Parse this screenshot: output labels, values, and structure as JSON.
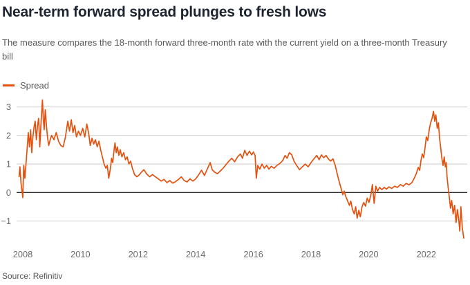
{
  "header": {
    "title": "Near-term forward spread plunges to fresh lows",
    "subtitle": "The measure compares the 18-month forward three-month rate with the current yield on a three-month Treasury bill"
  },
  "legend": {
    "label": "Spread",
    "color": "#e4510e"
  },
  "source": "Source: Refinitiv",
  "colors": {
    "line": "#e4510e",
    "grid": "#cbcbcb",
    "zero_line": "#2b2b2b",
    "tick_label": "#6b6b6b",
    "title": "#1e2430",
    "subtitle": "#575757"
  },
  "chart_data": {
    "type": "line",
    "title": "Near-term forward spread plunges to fresh lows",
    "subtitle": "The measure compares the 18-month forward three-month rate with the current yield on a three-month Treasury bill",
    "xlabel": "",
    "ylabel": "",
    "x_ticks": [
      2008,
      2010,
      2012,
      2014,
      2016,
      2018,
      2020,
      2022
    ],
    "y_ticks": [
      -1,
      0,
      1,
      2,
      3
    ],
    "xlim": [
      2007.85,
      2023.5
    ],
    "ylim": [
      -1.8,
      3.35
    ],
    "grid": "horizontal",
    "zero_line": true,
    "legend_position": "top-left",
    "source": "Source: Refinitiv",
    "series": [
      {
        "name": "Spread",
        "color": "#e4510e",
        "points": [
          [
            2007.87,
            0.55
          ],
          [
            2007.9,
            0.9
          ],
          [
            2007.94,
            0.3
          ],
          [
            2008,
            -0.18
          ],
          [
            2008.03,
            0.95
          ],
          [
            2008.07,
            0.5
          ],
          [
            2008.11,
            1.0
          ],
          [
            2008.15,
            1.55
          ],
          [
            2008.19,
            2.1
          ],
          [
            2008.23,
            1.6
          ],
          [
            2008.27,
            2.2
          ],
          [
            2008.31,
            1.4
          ],
          [
            2008.35,
            1.95
          ],
          [
            2008.39,
            2.3
          ],
          [
            2008.43,
            2.5
          ],
          [
            2008.47,
            1.85
          ],
          [
            2008.51,
            2.35
          ],
          [
            2008.55,
            2.6
          ],
          [
            2008.59,
            1.6
          ],
          [
            2008.63,
            2.4
          ],
          [
            2008.68,
            3.25
          ],
          [
            2008.71,
            2.6
          ],
          [
            2008.74,
            2.2
          ],
          [
            2008.78,
            2.9
          ],
          [
            2008.82,
            2.35
          ],
          [
            2008.86,
            1.9
          ],
          [
            2008.9,
            1.65
          ],
          [
            2008.95,
            1.85
          ],
          [
            2009,
            2.0
          ],
          [
            2009.08,
            1.85
          ],
          [
            2009.16,
            2.1
          ],
          [
            2009.24,
            1.8
          ],
          [
            2009.32,
            1.65
          ],
          [
            2009.4,
            1.6
          ],
          [
            2009.48,
            1.95
          ],
          [
            2009.56,
            2.5
          ],
          [
            2009.62,
            2.15
          ],
          [
            2009.68,
            2.55
          ],
          [
            2009.74,
            2.1
          ],
          [
            2009.8,
            2.35
          ],
          [
            2009.86,
            1.95
          ],
          [
            2009.93,
            2.15
          ],
          [
            2010,
            2.0
          ],
          [
            2010.08,
            2.25
          ],
          [
            2010.15,
            1.95
          ],
          [
            2010.22,
            2.4
          ],
          [
            2010.28,
            2.1
          ],
          [
            2010.34,
            1.65
          ],
          [
            2010.4,
            1.9
          ],
          [
            2010.46,
            1.7
          ],
          [
            2010.52,
            1.85
          ],
          [
            2010.58,
            1.6
          ],
          [
            2010.64,
            1.8
          ],
          [
            2010.7,
            1.5
          ],
          [
            2010.76,
            1.25
          ],
          [
            2010.82,
            1.0
          ],
          [
            2010.88,
            0.85
          ],
          [
            2010.93,
            0.95
          ],
          [
            2010.98,
            0.5
          ],
          [
            2011.04,
            0.85
          ],
          [
            2011.08,
            1.2
          ],
          [
            2011.12,
            1.05
          ],
          [
            2011.16,
            1.45
          ],
          [
            2011.2,
            1.74
          ],
          [
            2011.24,
            1.4
          ],
          [
            2011.28,
            1.6
          ],
          [
            2011.33,
            1.3
          ],
          [
            2011.38,
            1.5
          ],
          [
            2011.44,
            1.25
          ],
          [
            2011.5,
            1.4
          ],
          [
            2011.56,
            1.15
          ],
          [
            2011.62,
            1.25
          ],
          [
            2011.68,
            1.0
          ],
          [
            2011.74,
            1.1
          ],
          [
            2011.8,
            0.85
          ],
          [
            2011.88,
            0.62
          ],
          [
            2011.96,
            0.55
          ],
          [
            2012.04,
            0.62
          ],
          [
            2012.12,
            0.72
          ],
          [
            2012.2,
            0.8
          ],
          [
            2012.3,
            0.65
          ],
          [
            2012.4,
            0.55
          ],
          [
            2012.5,
            0.63
          ],
          [
            2012.6,
            0.55
          ],
          [
            2012.7,
            0.48
          ],
          [
            2012.8,
            0.4
          ],
          [
            2012.9,
            0.46
          ],
          [
            2013,
            0.35
          ],
          [
            2013.1,
            0.42
          ],
          [
            2013.2,
            0.33
          ],
          [
            2013.3,
            0.38
          ],
          [
            2013.4,
            0.46
          ],
          [
            2013.5,
            0.55
          ],
          [
            2013.6,
            0.42
          ],
          [
            2013.7,
            0.37
          ],
          [
            2013.8,
            0.48
          ],
          [
            2013.9,
            0.4
          ],
          [
            2014,
            0.48
          ],
          [
            2014.1,
            0.62
          ],
          [
            2014.2,
            0.78
          ],
          [
            2014.3,
            0.6
          ],
          [
            2014.4,
            0.82
          ],
          [
            2014.5,
            1.05
          ],
          [
            2014.57,
            0.8
          ],
          [
            2014.65,
            0.72
          ],
          [
            2014.75,
            0.66
          ],
          [
            2014.85,
            0.75
          ],
          [
            2014.95,
            0.85
          ],
          [
            2015.05,
            0.98
          ],
          [
            2015.15,
            1.1
          ],
          [
            2015.25,
            1.2
          ],
          [
            2015.35,
            1.08
          ],
          [
            2015.45,
            1.25
          ],
          [
            2015.55,
            1.35
          ],
          [
            2015.62,
            1.2
          ],
          [
            2015.7,
            1.48
          ],
          [
            2015.78,
            1.3
          ],
          [
            2015.86,
            1.45
          ],
          [
            2015.94,
            1.32
          ],
          [
            2016,
            1.42
          ],
          [
            2016.06,
            1.3
          ],
          [
            2016.1,
            0.5
          ],
          [
            2016.15,
            0.95
          ],
          [
            2016.22,
            0.82
          ],
          [
            2016.3,
            1.0
          ],
          [
            2016.38,
            0.85
          ],
          [
            2016.46,
            0.95
          ],
          [
            2016.54,
            0.82
          ],
          [
            2016.62,
            0.92
          ],
          [
            2016.72,
            0.85
          ],
          [
            2016.82,
            0.95
          ],
          [
            2016.92,
            1.02
          ],
          [
            2017.02,
            1.12
          ],
          [
            2017.1,
            1.3
          ],
          [
            2017.17,
            1.2
          ],
          [
            2017.25,
            1.4
          ],
          [
            2017.33,
            1.32
          ],
          [
            2017.42,
            1.08
          ],
          [
            2017.5,
            0.95
          ],
          [
            2017.6,
            0.8
          ],
          [
            2017.7,
            0.9
          ],
          [
            2017.8,
            1.0
          ],
          [
            2017.9,
            0.9
          ],
          [
            2018,
            1.05
          ],
          [
            2018.1,
            1.18
          ],
          [
            2018.2,
            1.3
          ],
          [
            2018.28,
            1.15
          ],
          [
            2018.36,
            1.32
          ],
          [
            2018.44,
            1.22
          ],
          [
            2018.52,
            1.3
          ],
          [
            2018.6,
            1.18
          ],
          [
            2018.68,
            1.1
          ],
          [
            2018.76,
            1.18
          ],
          [
            2018.84,
            0.95
          ],
          [
            2018.92,
            0.6
          ],
          [
            2019,
            0.3
          ],
          [
            2019.05,
            0.12
          ],
          [
            2019.1,
            -0.08
          ],
          [
            2019.15,
            0.05
          ],
          [
            2019.2,
            -0.12
          ],
          [
            2019.27,
            -0.3
          ],
          [
            2019.33,
            -0.45
          ],
          [
            2019.38,
            -0.3
          ],
          [
            2019.44,
            -0.6
          ],
          [
            2019.5,
            -0.75
          ],
          [
            2019.55,
            -0.5
          ],
          [
            2019.6,
            -0.9
          ],
          [
            2019.66,
            -0.62
          ],
          [
            2019.71,
            -0.85
          ],
          [
            2019.77,
            -0.5
          ],
          [
            2019.83,
            -0.35
          ],
          [
            2019.89,
            -0.48
          ],
          [
            2019.95,
            -0.2
          ],
          [
            2020.01,
            -0.35
          ],
          [
            2020.07,
            -0.12
          ],
          [
            2020.13,
            0.28
          ],
          [
            2020.19,
            -0.38
          ],
          [
            2020.25,
            0.22
          ],
          [
            2020.31,
            0.05
          ],
          [
            2020.38,
            0.18
          ],
          [
            2020.46,
            0.1
          ],
          [
            2020.54,
            0.18
          ],
          [
            2020.62,
            0.12
          ],
          [
            2020.7,
            0.2
          ],
          [
            2020.8,
            0.14
          ],
          [
            2020.9,
            0.22
          ],
          [
            2021,
            0.18
          ],
          [
            2021.1,
            0.28
          ],
          [
            2021.2,
            0.22
          ],
          [
            2021.3,
            0.32
          ],
          [
            2021.4,
            0.27
          ],
          [
            2021.5,
            0.35
          ],
          [
            2021.58,
            0.5
          ],
          [
            2021.66,
            0.68
          ],
          [
            2021.72,
            0.88
          ],
          [
            2021.77,
            0.78
          ],
          [
            2021.81,
            1.1
          ],
          [
            2021.86,
            1.35
          ],
          [
            2021.91,
            1.22
          ],
          [
            2021.96,
            1.6
          ],
          [
            2022,
            1.95
          ],
          [
            2022.05,
            1.82
          ],
          [
            2022.1,
            2.2
          ],
          [
            2022.15,
            2.45
          ],
          [
            2022.2,
            2.6
          ],
          [
            2022.25,
            2.85
          ],
          [
            2022.29,
            2.5
          ],
          [
            2022.33,
            2.72
          ],
          [
            2022.38,
            2.25
          ],
          [
            2022.42,
            2.45
          ],
          [
            2022.46,
            1.9
          ],
          [
            2022.5,
            1.55
          ],
          [
            2022.54,
            1.2
          ],
          [
            2022.58,
            0.95
          ],
          [
            2022.62,
            1.25
          ],
          [
            2022.66,
            0.9
          ],
          [
            2022.69,
            1.05
          ],
          [
            2022.72,
            0.55
          ],
          [
            2022.76,
            0.15
          ],
          [
            2022.8,
            -0.2
          ],
          [
            2022.84,
            -0.55
          ],
          [
            2022.88,
            -0.28
          ],
          [
            2022.93,
            -0.75
          ],
          [
            2022.98,
            -0.45
          ],
          [
            2023.03,
            -1.05
          ],
          [
            2023.08,
            -0.6
          ],
          [
            2023.13,
            -1.0
          ],
          [
            2023.16,
            -1.35
          ],
          [
            2023.2,
            -0.5
          ],
          [
            2023.25,
            -1.25
          ],
          [
            2023.3,
            -1.6
          ]
        ]
      }
    ]
  }
}
